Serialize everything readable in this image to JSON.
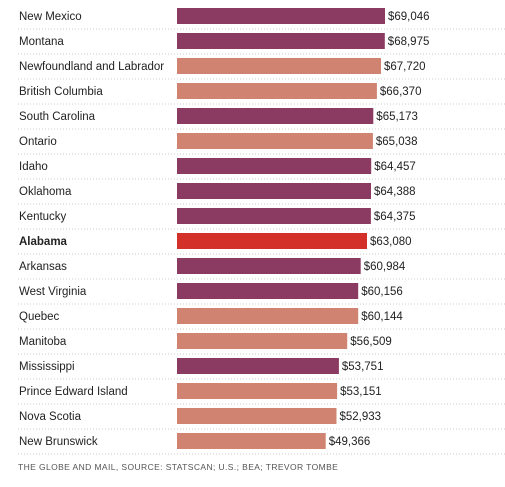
{
  "chart_data": {
    "type": "bar",
    "orientation": "horizontal",
    "categories": [
      "New Mexico",
      "Montana",
      "Newfoundland and Labrador",
      "British Columbia",
      "South Carolina",
      "Ontario",
      "Idaho",
      "Oklahoma",
      "Kentucky",
      "Alabama",
      "Arkansas",
      "West Virginia",
      "Quebec",
      "Manitoba",
      "Mississippi",
      "Prince Edward Island",
      "Nova Scotia",
      "New Brunswick"
    ],
    "values": [
      69046,
      68975,
      67720,
      66370,
      65173,
      65038,
      64457,
      64388,
      64375,
      63080,
      60984,
      60156,
      60144,
      56509,
      53751,
      53151,
      52933,
      49366
    ],
    "value_labels": [
      "$69,046",
      "$68,975",
      "$67,720",
      "$66,370",
      "$65,173",
      "$65,038",
      "$64,457",
      "$64,388",
      "$64,375",
      "$63,080",
      "$60,984",
      "$60,156",
      "$60,144",
      "$56,509",
      "$53,751",
      "$53,151",
      "$52,933",
      "$49,366"
    ],
    "groups": [
      "us",
      "us",
      "canada",
      "canada",
      "us",
      "canada",
      "us",
      "us",
      "us",
      "highlight",
      "us",
      "us",
      "canada",
      "canada",
      "us",
      "canada",
      "canada",
      "canada"
    ],
    "highlight_index": 9,
    "colors": {
      "us": "#8b3a62",
      "canada": "#d08370",
      "highlight": "#d4302a",
      "gridline": "#cccccc"
    },
    "title": "",
    "xlabel": "",
    "ylabel": "",
    "xlim": [
      0,
      69046
    ],
    "grid": true,
    "legend": "none"
  },
  "source": "THE GLOBE AND MAIL, SOURCE: STATSCAN; U.S.; BEA; TREVOR TOMBE"
}
